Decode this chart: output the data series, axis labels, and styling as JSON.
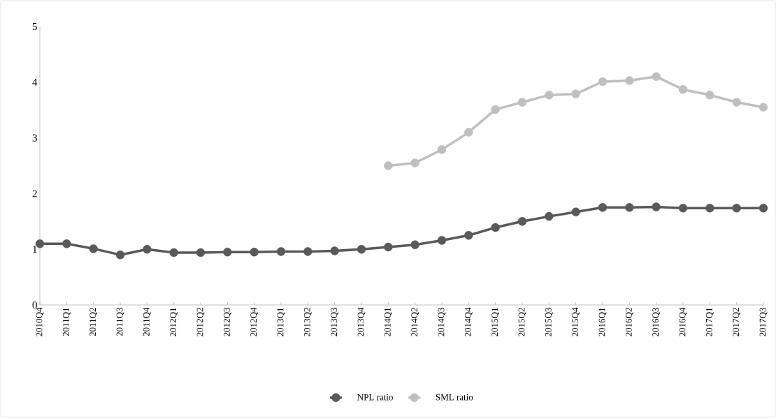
{
  "chart_data": {
    "type": "line",
    "categories": [
      "2010Q4",
      "2011Q1",
      "2011Q2",
      "2011Q3",
      "2011Q4",
      "2012Q1",
      "2012Q2",
      "2012Q3",
      "2012Q4",
      "2013Q1",
      "2013Q2",
      "2013Q3",
      "2013Q4",
      "2014Q1",
      "2014Q2",
      "2014Q3",
      "2014Q4",
      "2015Q1",
      "2015Q2",
      "2015Q3",
      "2015Q4",
      "2016Q1",
      "2016Q2",
      "2016Q3",
      "2016Q4",
      "2017Q1",
      "2017Q2",
      "2017Q3"
    ],
    "series": [
      {
        "name": "NPL ratio",
        "color": "#595959",
        "values": [
          1.1,
          1.1,
          1.01,
          0.9,
          1.0,
          0.94,
          0.94,
          0.95,
          0.95,
          0.96,
          0.96,
          0.97,
          1.0,
          1.04,
          1.08,
          1.16,
          1.25,
          1.39,
          1.5,
          1.59,
          1.67,
          1.75,
          1.75,
          1.76,
          1.74,
          1.74,
          1.74,
          1.74
        ]
      },
      {
        "name": "SML ratio",
        "color": "#bfbfbf",
        "values": [
          null,
          null,
          null,
          null,
          null,
          null,
          null,
          null,
          null,
          null,
          null,
          null,
          null,
          2.5,
          2.55,
          2.79,
          3.1,
          3.51,
          3.64,
          3.77,
          3.79,
          4.01,
          4.03,
          4.1,
          3.87,
          3.77,
          3.64,
          3.55
        ]
      }
    ],
    "ylim": [
      0,
      5
    ],
    "yticks": [
      0,
      1,
      2,
      3,
      4,
      5
    ],
    "legend": "bottom",
    "marker": "circle"
  }
}
